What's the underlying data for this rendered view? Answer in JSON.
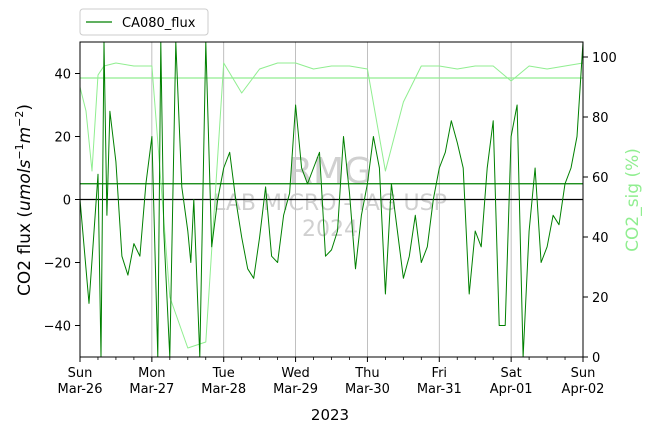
{
  "chart_data": {
    "type": "line",
    "legend": {
      "label": "CA080_flux",
      "placement": "top-left"
    },
    "left_axis": {
      "label": "CO2 flux ($umol s^{-1} m^{-2}$)",
      "label_main": "CO2 flux (",
      "label_math": "umols",
      "label_sup1": "−1",
      "label_math2": "m",
      "label_sup2": "−2",
      "label_close": ")",
      "ylim": [
        -50,
        50
      ],
      "ticks": [
        -40,
        -20,
        0,
        20,
        40
      ],
      "tick_labels": [
        "−40",
        "−20",
        "0",
        "20",
        "40"
      ],
      "color": "#000000"
    },
    "right_axis": {
      "label": "CO2_sig (%)",
      "ylim": [
        0,
        105
      ],
      "ticks": [
        0,
        20,
        40,
        60,
        80,
        100
      ],
      "tick_labels": [
        "0",
        "20",
        "40",
        "60",
        "80",
        "100"
      ],
      "color": "#90ee90"
    },
    "x_axis": {
      "label": "2023",
      "range": [
        "2023-03-26",
        "2023-04-02"
      ],
      "ticks": [
        {
          "date": "2023-03-26",
          "day": "Sun",
          "date_label": "Mar-26"
        },
        {
          "date": "2023-03-27",
          "day": "Mon",
          "date_label": "Mar-27"
        },
        {
          "date": "2023-03-28",
          "day": "Tue",
          "date_label": "Mar-28"
        },
        {
          "date": "2023-03-29",
          "day": "Wed",
          "date_label": "Mar-29"
        },
        {
          "date": "2023-03-30",
          "day": "Thu",
          "date_label": "Mar-30"
        },
        {
          "date": "2023-03-31",
          "day": "Fri",
          "date_label": "Mar-31"
        },
        {
          "date": "2023-04-01",
          "day": "Sat",
          "date_label": "Apr-01"
        },
        {
          "date": "2023-04-02",
          "day": "Sun",
          "date_label": "Apr-02"
        }
      ]
    },
    "grid": "vertical",
    "reference_lines": [
      {
        "axis": "left",
        "value": 0,
        "color": "#000000"
      },
      {
        "axis": "left",
        "value": 5,
        "color": "#008000"
      },
      {
        "axis": "right",
        "value": 93,
        "color": "#90ee90"
      }
    ],
    "watermark": [
      "RMG",
      "LAB MICRO - IAG USP",
      "2024"
    ],
    "series": [
      {
        "name": "CA080_flux",
        "axis": "left",
        "color": "#008000",
        "x": [
          "2023-03-26 00:00",
          "2023-03-26 03:00",
          "2023-03-26 06:00",
          "2023-03-26 07:00",
          "2023-03-26 08:00",
          "2023-03-26 09:00",
          "2023-03-26 10:00",
          "2023-03-26 12:00",
          "2023-03-26 14:00",
          "2023-03-26 16:00",
          "2023-03-26 18:00",
          "2023-03-26 20:00",
          "2023-03-26 22:00",
          "2023-03-27 00:00",
          "2023-03-27 02:00",
          "2023-03-27 03:00",
          "2023-03-27 04:00",
          "2023-03-27 06:00",
          "2023-03-27 08:00",
          "2023-03-27 10:00",
          "2023-03-27 12:00",
          "2023-03-27 13:00",
          "2023-03-27 14:00",
          "2023-03-27 16:00",
          "2023-03-27 18:00",
          "2023-03-27 20:00",
          "2023-03-27 22:00",
          "2023-03-28 00:00",
          "2023-03-28 02:00",
          "2023-03-28 04:00",
          "2023-03-28 06:00",
          "2023-03-28 08:00",
          "2023-03-28 10:00",
          "2023-03-28 12:00",
          "2023-03-28 14:00",
          "2023-03-28 16:00",
          "2023-03-28 18:00",
          "2023-03-28 20:00",
          "2023-03-28 22:00",
          "2023-03-29 00:00",
          "2023-03-29 02:00",
          "2023-03-29 04:00",
          "2023-03-29 06:00",
          "2023-03-29 08:00",
          "2023-03-29 10:00",
          "2023-03-29 12:00",
          "2023-03-29 14:00",
          "2023-03-29 16:00",
          "2023-03-29 18:00",
          "2023-03-29 20:00",
          "2023-03-29 22:00",
          "2023-03-30 00:00",
          "2023-03-30 02:00",
          "2023-03-30 04:00",
          "2023-03-30 06:00",
          "2023-03-30 08:00",
          "2023-03-30 10:00",
          "2023-03-30 12:00",
          "2023-03-30 14:00",
          "2023-03-30 16:00",
          "2023-03-30 18:00",
          "2023-03-30 20:00",
          "2023-03-30 22:00",
          "2023-03-31 00:00",
          "2023-03-31 02:00",
          "2023-03-31 04:00",
          "2023-03-31 06:00",
          "2023-03-31 08:00",
          "2023-03-31 10:00",
          "2023-03-31 12:00",
          "2023-03-31 14:00",
          "2023-03-31 16:00",
          "2023-03-31 18:00",
          "2023-03-31 20:00",
          "2023-03-31 22:00",
          "2023-04-01 00:00",
          "2023-04-01 02:00",
          "2023-04-01 04:00",
          "2023-04-01 06:00",
          "2023-04-01 08:00",
          "2023-04-01 10:00",
          "2023-04-01 12:00",
          "2023-04-01 14:00",
          "2023-04-01 16:00",
          "2023-04-01 18:00",
          "2023-04-01 20:00",
          "2023-04-01 22:00",
          "2023-04-02 00:00"
        ],
        "y": [
          0,
          -33,
          8,
          -50,
          50,
          -5,
          28,
          12,
          -18,
          -24,
          -14,
          -18,
          5,
          20,
          -50,
          50,
          -10,
          -50,
          50,
          4,
          -10,
          -20,
          0,
          -50,
          50,
          -15,
          0,
          10,
          15,
          0,
          -12,
          -22,
          -25,
          -12,
          4,
          -18,
          -20,
          -5,
          2,
          30,
          10,
          5,
          10,
          15,
          -18,
          -16,
          -10,
          20,
          2,
          -22,
          -5,
          5,
          20,
          10,
          -30,
          5,
          -10,
          -25,
          -18,
          -5,
          -20,
          -15,
          0,
          10,
          15,
          25,
          18,
          10,
          -30,
          -10,
          -15,
          10,
          25,
          -40,
          -40,
          20,
          30,
          -50,
          -10,
          10,
          -20,
          -15,
          -5,
          -8,
          5,
          10,
          20,
          50
        ]
      },
      {
        "name": "CO2_sig",
        "axis": "right",
        "color": "#90ee90",
        "x": [
          "2023-03-26 00:00",
          "2023-03-26 02:00",
          "2023-03-26 04:00",
          "2023-03-26 06:00",
          "2023-03-26 08:00",
          "2023-03-26 12:00",
          "2023-03-26 18:00",
          "2023-03-27 00:00",
          "2023-03-27 06:00",
          "2023-03-27 12:00",
          "2023-03-27 18:00",
          "2023-03-28 00:00",
          "2023-03-28 06:00",
          "2023-03-28 12:00",
          "2023-03-28 18:00",
          "2023-03-29 00:00",
          "2023-03-29 06:00",
          "2023-03-29 12:00",
          "2023-03-29 18:00",
          "2023-03-30 00:00",
          "2023-03-30 06:00",
          "2023-03-30 12:00",
          "2023-03-30 18:00",
          "2023-03-31 00:00",
          "2023-03-31 06:00",
          "2023-03-31 12:00",
          "2023-03-31 18:00",
          "2023-04-01 00:00",
          "2023-04-01 06:00",
          "2023-04-01 12:00",
          "2023-04-01 18:00",
          "2023-04-02 00:00"
        ],
        "y": [
          90,
          82,
          62,
          94,
          97,
          98,
          97,
          97,
          20,
          3,
          5,
          98,
          88,
          96,
          98,
          98,
          96,
          97,
          97,
          96,
          62,
          85,
          97,
          97,
          96,
          97,
          97,
          92,
          97,
          96,
          97,
          98
        ]
      }
    ]
  }
}
